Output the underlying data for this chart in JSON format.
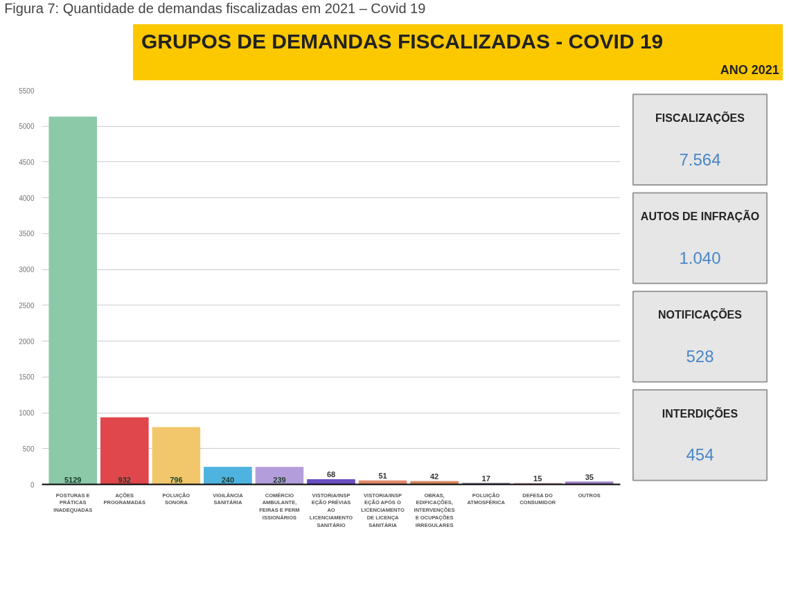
{
  "chart_data": {
    "type": "bar",
    "title": "Figura 7: Quantidade de demandas fiscalizadas em 2021 – Covid 19",
    "subtitle": "GRUPOS DE DEMANDAS FISCALIZADAS - COVID 19",
    "annotations": [
      "ANO 2021",
      "FISCALIZAÇÕES",
      "7.564",
      "AUTOS DE INFRAÇÃO",
      "1.040",
      "NOTIFICAÇÕES",
      "528",
      "INTERDIÇÕES",
      "454"
    ],
    "categories": [
      "POSTURAS E PRÁTICAS INADEQUADAS",
      "AÇÕES PROGRAMADAS",
      "POLUIÇÃO SONORA",
      "VIGILÂNCIA SANITÁRIA",
      "COMÉRCIO AMBULANTE, FEIRAS E PERMISSIONÁRIOS",
      "VISTORIA/INSPEÇÃO PRÉVIAS AO LICENCIAMENTO SANITÁRIO",
      "VISTORIA/INSPEÇÃO APÓS O LICENCIAMENTO DE LICENÇA SANITÁRIA",
      "OBRAS, EDIFICAÇÕES, INTERVENÇÕES E OCUPAÇÕES IRREGULARES",
      "POLUIÇÃO ATMOSFÉRICA",
      "DEFESA DO CONSUMIDOR",
      "OUTROS"
    ],
    "values": [
      5129,
      932,
      796,
      240,
      239,
      68,
      51,
      42,
      17,
      15,
      35
    ],
    "colors": [
      "#8cc9a8",
      "#e0474c",
      "#f2c76b",
      "#4fb3e0",
      "#b39ddb",
      "#6a4fc0",
      "#e0876a",
      "#d4845a",
      "#8a8a99",
      "#c9a0b0",
      "#9b7fc0"
    ],
    "ylim": [
      0,
      5500
    ],
    "yticks": [
      0,
      500,
      1000,
      1500,
      2000,
      2500,
      3000,
      3500,
      4000,
      4500,
      5000,
      5500
    ],
    "grid": "y",
    "data_labels": true
  }
}
